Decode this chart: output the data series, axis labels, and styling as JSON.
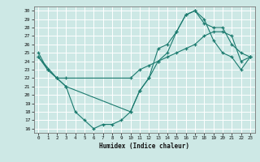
{
  "xlabel": "Humidex (Indice chaleur)",
  "bg_color": "#cde8e5",
  "line_color": "#1a7a6e",
  "grid_color": "#ffffff",
  "xlim": [
    -0.5,
    23.5
  ],
  "ylim": [
    15.5,
    30.5
  ],
  "xticks": [
    0,
    1,
    2,
    3,
    4,
    5,
    6,
    7,
    8,
    9,
    10,
    11,
    12,
    13,
    14,
    15,
    16,
    17,
    18,
    19,
    20,
    21,
    22,
    23
  ],
  "yticks": [
    16,
    17,
    18,
    19,
    20,
    21,
    22,
    23,
    24,
    25,
    26,
    27,
    28,
    29,
    30
  ],
  "curve1_x": [
    0,
    1,
    2,
    3,
    4,
    5,
    6,
    7,
    8,
    9,
    10,
    11,
    12,
    13,
    14,
    15,
    16,
    17,
    18,
    19,
    20,
    21,
    22,
    23
  ],
  "curve1_y": [
    25,
    23,
    22,
    21,
    18,
    17,
    16,
    16.5,
    16.5,
    17,
    18,
    20.5,
    22,
    25.5,
    26,
    27.5,
    29.5,
    30,
    29,
    26.5,
    25,
    24.5,
    23,
    24.5
  ],
  "curve2_x": [
    0,
    1,
    2,
    3,
    10,
    11,
    12,
    13,
    14,
    15,
    16,
    17,
    18,
    19,
    20,
    21,
    22,
    23
  ],
  "curve2_y": [
    24.5,
    23,
    22,
    21,
    18,
    20.5,
    22,
    24,
    25,
    27.5,
    29.5,
    30,
    28.5,
    28,
    28,
    26,
    25,
    24.5
  ],
  "curve3_x": [
    0,
    2,
    3,
    10,
    11,
    12,
    13,
    14,
    15,
    16,
    17,
    18,
    19,
    20,
    21,
    22,
    23
  ],
  "curve3_y": [
    24.5,
    22,
    22,
    22,
    23,
    23.5,
    24,
    24.5,
    25,
    25.5,
    26,
    27,
    27.5,
    27.5,
    27,
    24,
    24.5
  ]
}
